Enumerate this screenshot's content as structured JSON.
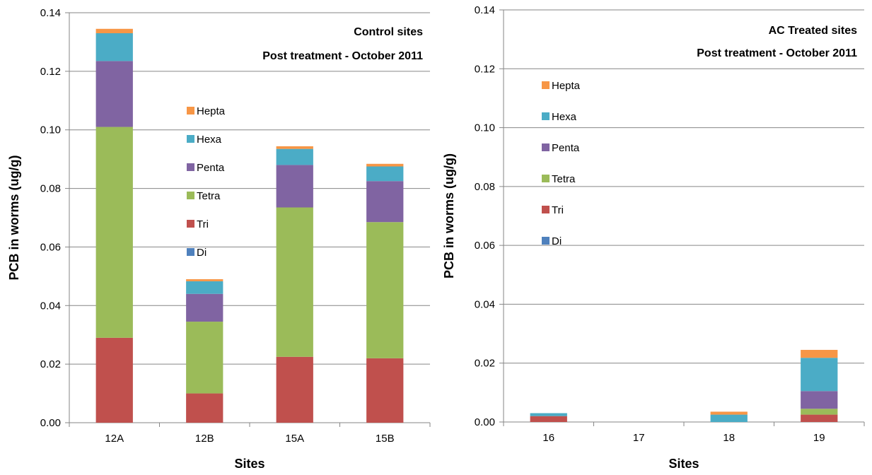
{
  "chart_data": [
    {
      "type": "bar",
      "stacked": true,
      "title": "Control sites",
      "subtitle": "Post treatment - October 2011",
      "xlabel": "Sites",
      "ylabel": "PCB in worms (ug/g)",
      "ylim": [
        0,
        0.14
      ],
      "yticks": [
        "0.00",
        "0.02",
        "0.04",
        "0.06",
        "0.08",
        "0.10",
        "0.12",
        "0.14"
      ],
      "grid": true,
      "legend_position": "center",
      "categories": [
        "12A",
        "12B",
        "15A",
        "15B"
      ],
      "series": [
        {
          "name": "Di",
          "color": "#4f81bd",
          "values": [
            0,
            0,
            0,
            0
          ]
        },
        {
          "name": "Tri",
          "color": "#c0504d",
          "values": [
            0.029,
            0.01,
            0.0225,
            0.022
          ]
        },
        {
          "name": "Tetra",
          "color": "#9bbb59",
          "values": [
            0.072,
            0.0245,
            0.051,
            0.0465
          ]
        },
        {
          "name": "Penta",
          "color": "#8064a2",
          "values": [
            0.0225,
            0.0095,
            0.0145,
            0.014
          ]
        },
        {
          "name": "Hexa",
          "color": "#4bacc6",
          "values": [
            0.0095,
            0.0043,
            0.0055,
            0.005
          ]
        },
        {
          "name": "Hepta",
          "color": "#f79646",
          "values": [
            0.0015,
            0.0007,
            0.0009,
            0.0009
          ]
        }
      ]
    },
    {
      "type": "bar",
      "stacked": true,
      "title": "AC Treated sites",
      "subtitle": "Post treatment - October 2011",
      "xlabel": "Sites",
      "ylabel": "PCB in worms (ug/g)",
      "ylim": [
        0,
        0.14
      ],
      "yticks": [
        "0.00",
        "0.02",
        "0.04",
        "0.06",
        "0.08",
        "0.10",
        "0.12",
        "0.14"
      ],
      "grid": true,
      "legend_position": "top-left",
      "categories": [
        "16",
        "17",
        "18",
        "19"
      ],
      "series": [
        {
          "name": "Di",
          "color": "#4f81bd",
          "values": [
            0,
            0,
            0,
            0
          ]
        },
        {
          "name": "Tri",
          "color": "#c0504d",
          "values": [
            0.002,
            0,
            0,
            0.0025
          ]
        },
        {
          "name": "Tetra",
          "color": "#9bbb59",
          "values": [
            0,
            0,
            0,
            0.002
          ]
        },
        {
          "name": "Penta",
          "color": "#8064a2",
          "values": [
            0,
            0,
            0,
            0.006
          ]
        },
        {
          "name": "Hexa",
          "color": "#4bacc6",
          "values": [
            0.001,
            0,
            0.0025,
            0.0113
          ]
        },
        {
          "name": "Hepta",
          "color": "#f79646",
          "values": [
            0,
            0,
            0.001,
            0.0027
          ]
        }
      ]
    }
  ]
}
